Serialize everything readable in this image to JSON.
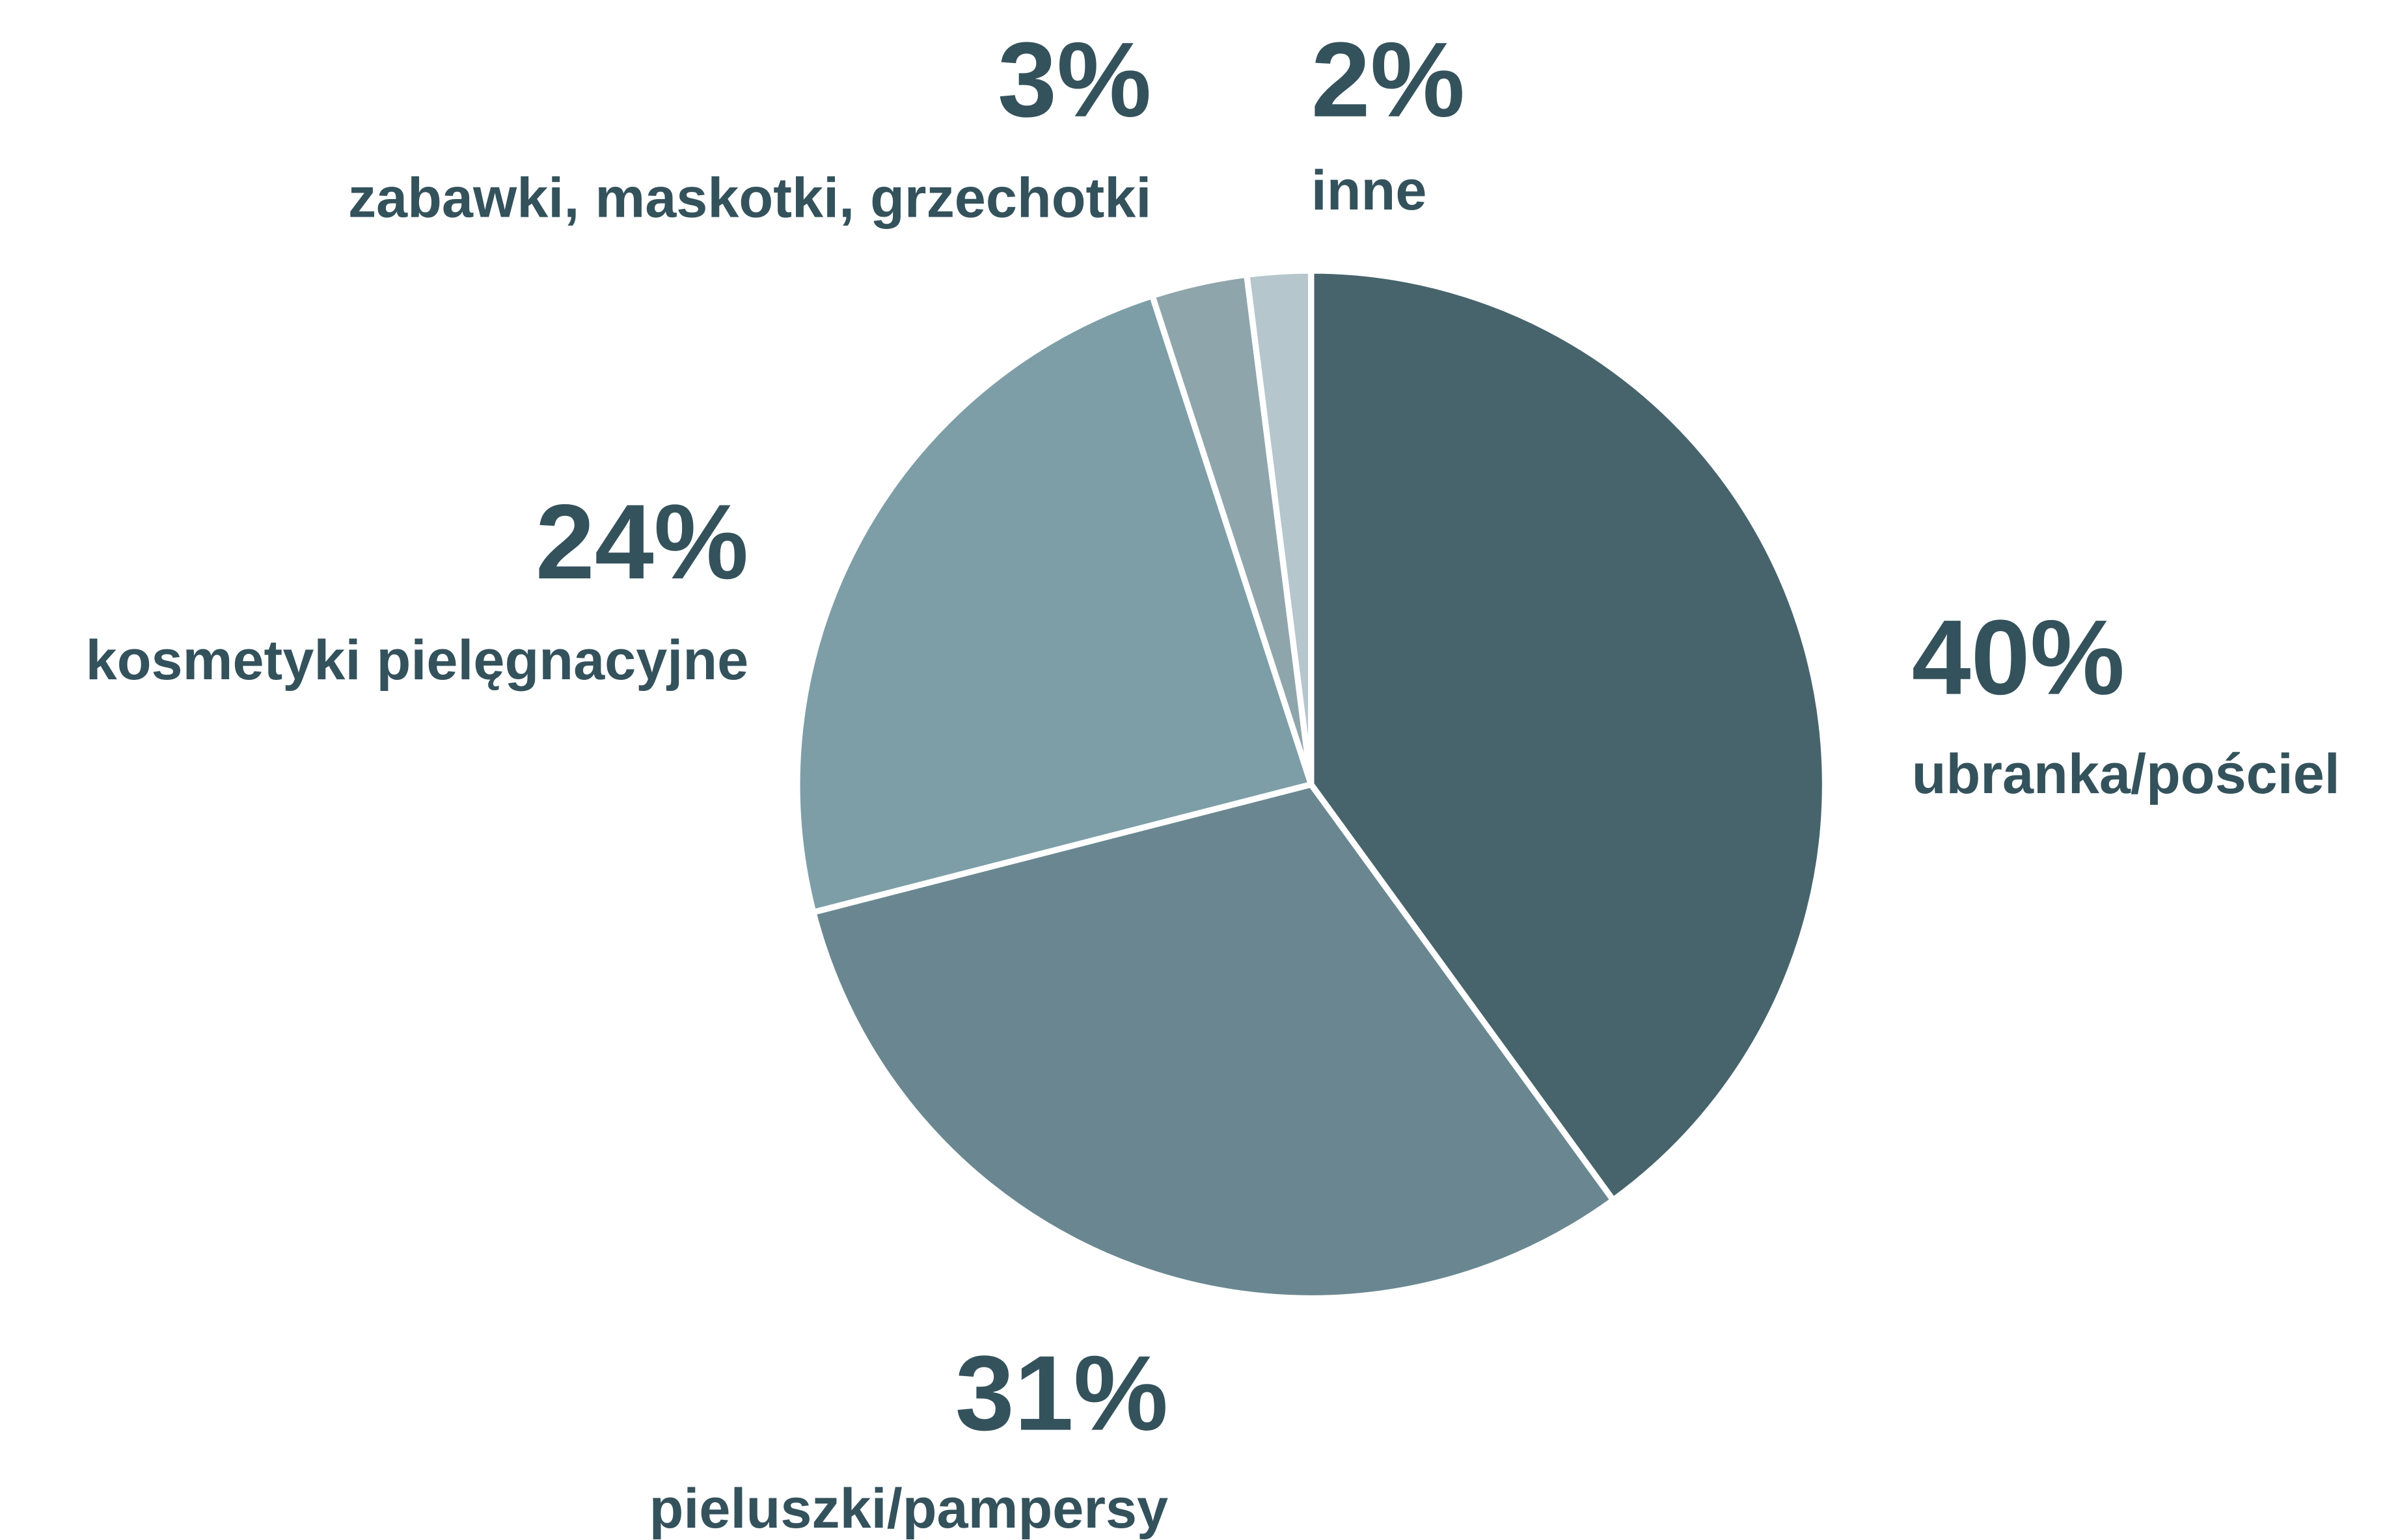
{
  "chart_data": {
    "type": "pie",
    "categories": [
      "ubranka/pościel",
      "pieluszki/pampersy",
      "kosmetyki pielęgnacyjne",
      "zabawki, maskotki, grzechotki",
      "inne"
    ],
    "values": [
      40,
      31,
      24,
      3,
      2
    ],
    "value_labels": [
      "40%",
      "31%",
      "24%",
      "3%",
      "2%"
    ],
    "colors": [
      "#47646c",
      "#6a8791",
      "#7d9ea7",
      "#8fa5ac",
      "#b5c6cc"
    ]
  }
}
